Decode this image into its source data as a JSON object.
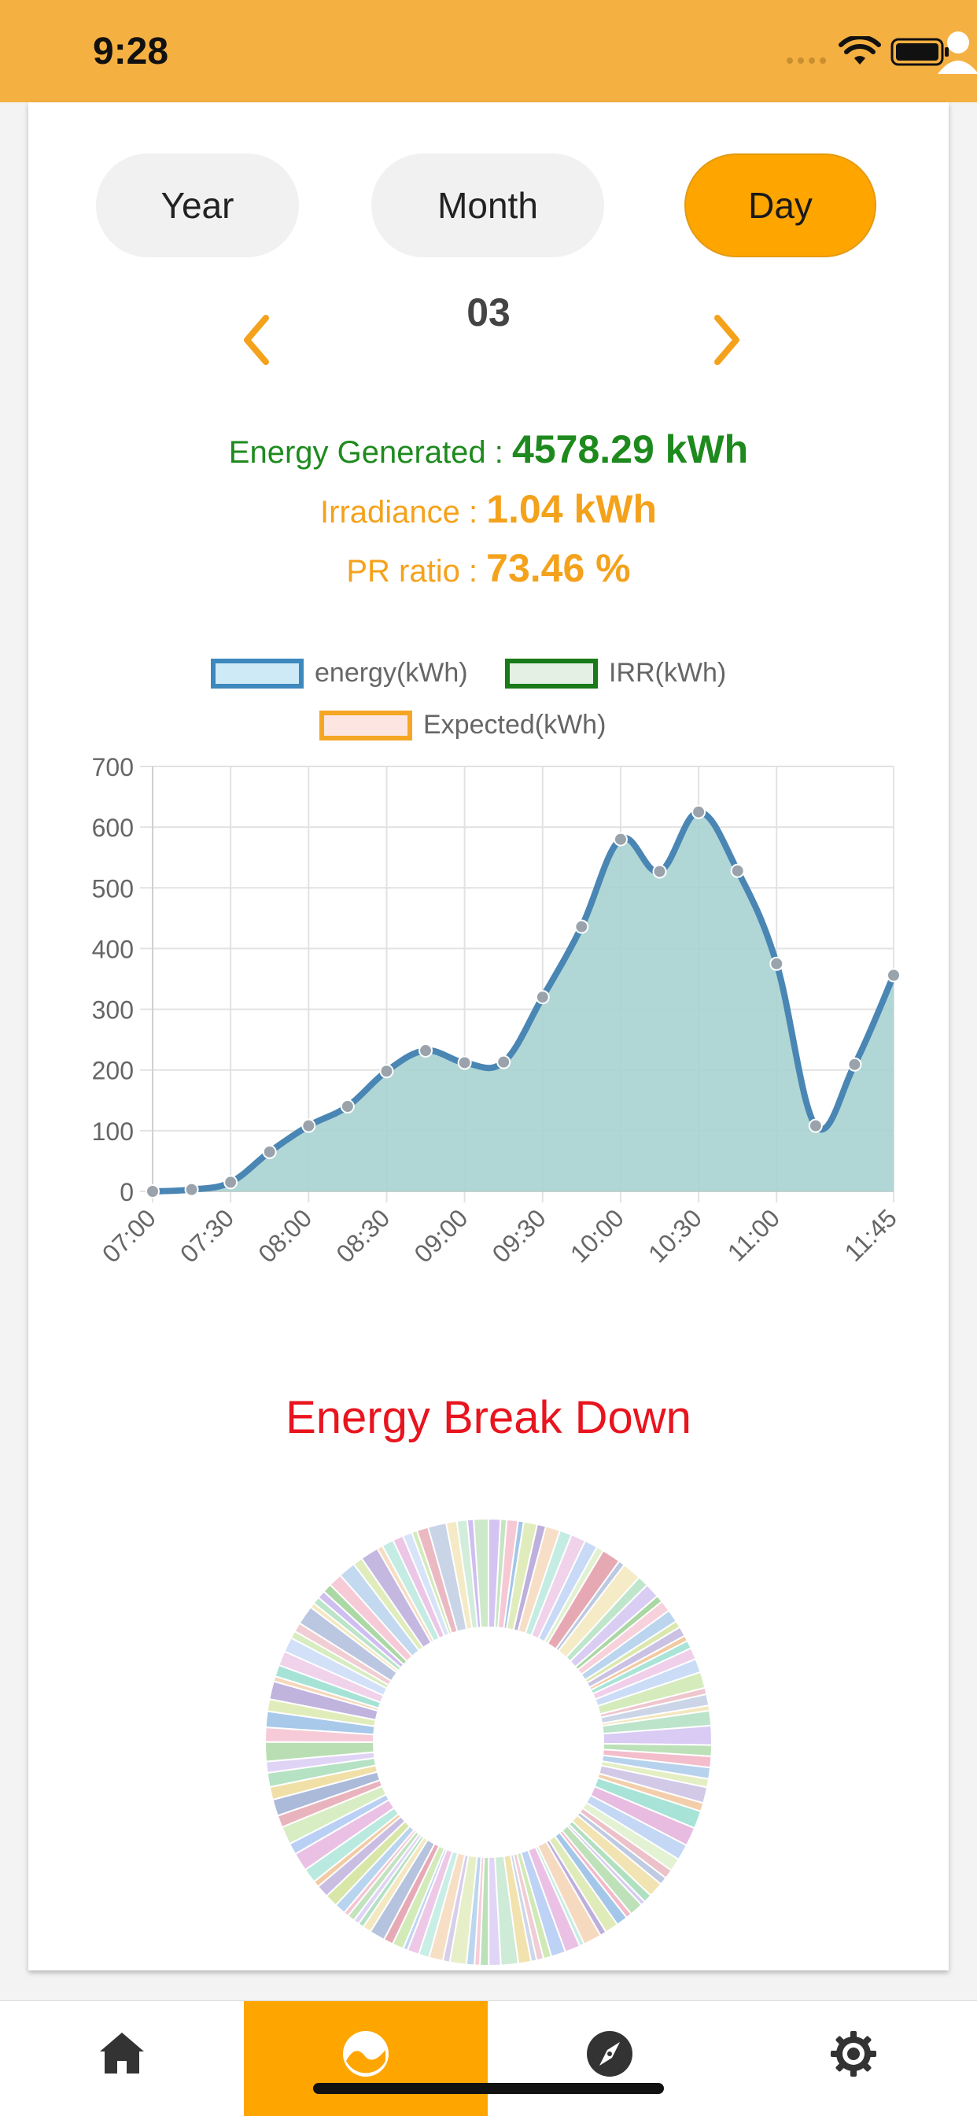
{
  "status": {
    "time": "9:28"
  },
  "segments": [
    {
      "label": "Year"
    },
    {
      "label": "Month"
    },
    {
      "label": "Day"
    }
  ],
  "period": {
    "label": "03"
  },
  "stats": {
    "energy_label": "Energy Generated : ",
    "energy_value": "4578.29 kWh",
    "irradiance_label": "Irradiance : ",
    "irradiance_value": "1.04 kWh",
    "pr_label": "PR ratio : ",
    "pr_value": "73.46 %"
  },
  "legend": [
    {
      "label": "energy(kWh)",
      "border": "#3d88bd",
      "fill": "#cfeaf7"
    },
    {
      "label": "IRR(kWh)",
      "border": "#187a18",
      "fill": "#e3f0e3"
    },
    {
      "label": "Expected(kWh)",
      "border": "#f5a623",
      "fill": "#fde6e2"
    }
  ],
  "colors": {
    "accent": "#ffa500",
    "status_bar": "#f5b042",
    "line": "#4a86b4",
    "area": "#a7d3d1",
    "point": "#9aa3ab",
    "title_red": "#e8141e"
  },
  "chart_data": {
    "type": "area",
    "x": [
      "07:00",
      "07:15",
      "07:30",
      "07:45",
      "08:00",
      "08:15",
      "08:30",
      "08:45",
      "09:00",
      "09:15",
      "09:30",
      "09:45",
      "10:00",
      "10:15",
      "10:30",
      "10:45",
      "11:00",
      "11:15",
      "11:30",
      "11:45"
    ],
    "tick_labels": [
      "07:00",
      "07:30",
      "08:00",
      "08:30",
      "09:00",
      "09:30",
      "10:00",
      "10:30",
      "11:00",
      "11:45"
    ],
    "series": [
      {
        "name": "energy(kWh)",
        "values": [
          0,
          3,
          15,
          65,
          108,
          140,
          198,
          232,
          212,
          213,
          320,
          436,
          580,
          527,
          625,
          528,
          375,
          108,
          209,
          356
        ]
      }
    ],
    "ylim": [
      0,
      700
    ],
    "yticks": [
      0,
      100,
      200,
      300,
      400,
      500,
      600,
      700
    ],
    "grid": true,
    "legend_position": "top"
  },
  "breakdown": {
    "title": "Energy Break Down"
  },
  "tabs": [
    {
      "icon": "home-icon"
    },
    {
      "icon": "chart-icon"
    },
    {
      "icon": "compass-icon"
    },
    {
      "icon": "gear-icon"
    }
  ]
}
